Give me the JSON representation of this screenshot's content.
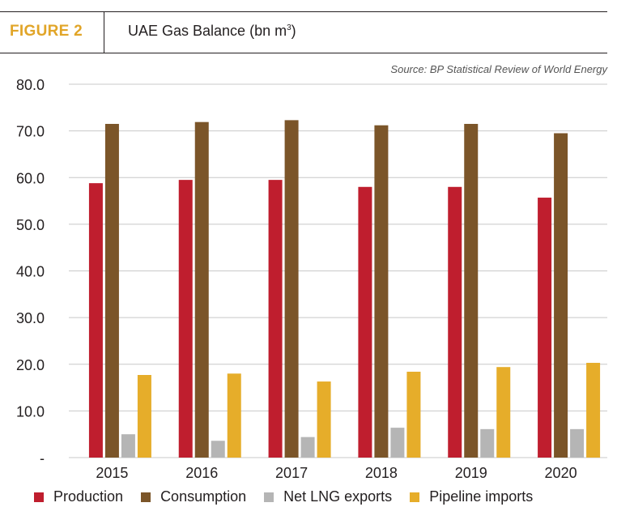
{
  "header": {
    "figure_label": "FIGURE 2",
    "title_main": "UAE Gas Balance (bn m",
    "title_sup": "3",
    "title_end": ")",
    "source": "Source: BP Statistical Review of World Energy"
  },
  "chart_data": {
    "type": "bar",
    "title": "UAE Gas Balance (bn m³)",
    "categories": [
      "2015",
      "2016",
      "2017",
      "2018",
      "2019",
      "2020"
    ],
    "series": [
      {
        "name": "Production",
        "color": "#bf1e2e",
        "values": [
          58.8,
          59.5,
          59.5,
          58.0,
          58.0,
          55.7
        ]
      },
      {
        "name": "Consumption",
        "color": "#7b5529",
        "values": [
          71.5,
          71.9,
          72.3,
          71.2,
          71.5,
          69.5
        ]
      },
      {
        "name": "Net LNG exports",
        "color": "#b5b5b5",
        "values": [
          5.0,
          3.6,
          4.4,
          6.4,
          6.1,
          6.1
        ]
      },
      {
        "name": "Pipeline imports",
        "color": "#e6ad2a",
        "values": [
          17.7,
          18.0,
          16.3,
          18.4,
          19.4,
          20.3
        ]
      }
    ],
    "yticks": [
      "-",
      "10.0",
      "20.0",
      "30.0",
      "40.0",
      "50.0",
      "60.0",
      "70.0",
      "80.0"
    ],
    "ylim": [
      0,
      80
    ],
    "grid": true,
    "legend_position": "bottom"
  }
}
